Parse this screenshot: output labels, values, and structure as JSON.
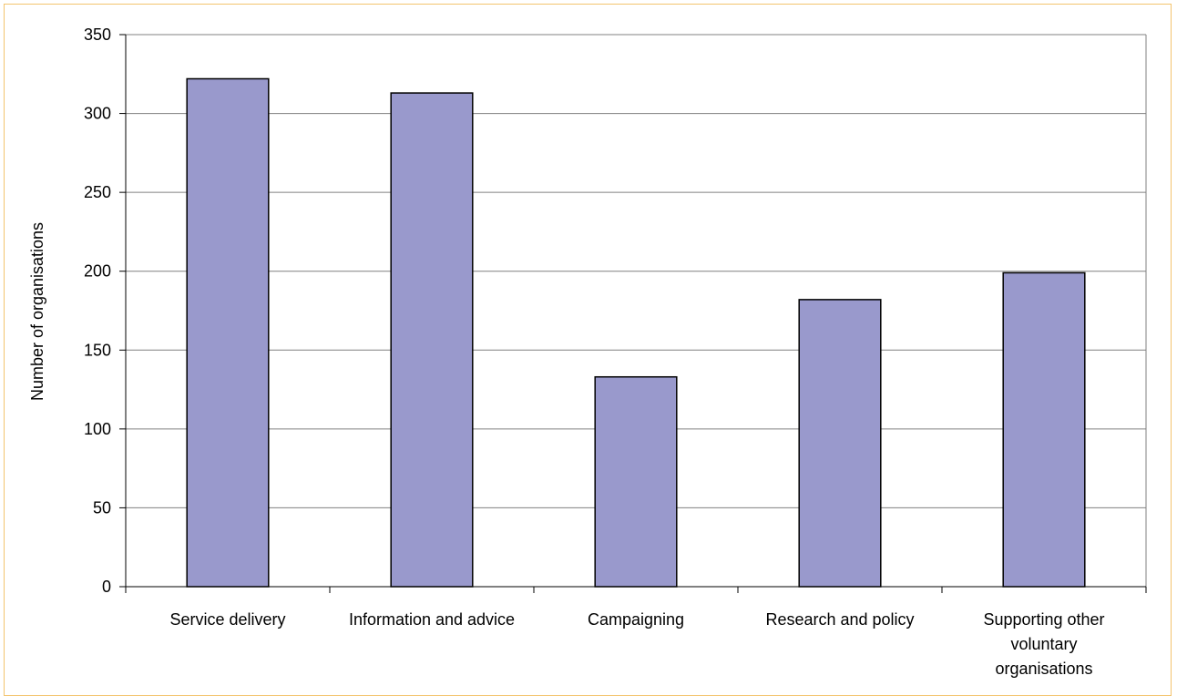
{
  "chart_data": {
    "type": "bar",
    "title": "",
    "xlabel": "",
    "ylabel": "Number of organisations",
    "categories": [
      "Service delivery",
      "Information and advice",
      "Campaigning",
      "Research and policy",
      "Supporting other voluntary organisations"
    ],
    "category_label_lines": [
      [
        "Service delivery"
      ],
      [
        "Information and advice"
      ],
      [
        "Campaigning"
      ],
      [
        "Research and policy"
      ],
      [
        "Supporting other",
        "voluntary",
        "organisations"
      ]
    ],
    "values": [
      322,
      313,
      133,
      182,
      199
    ],
    "ylim": [
      0,
      350
    ],
    "yticks": [
      0,
      50,
      100,
      150,
      200,
      250,
      300,
      350
    ],
    "grid": true,
    "legend": "none",
    "colors": {
      "bar_fill": "#9999cc",
      "bar_stroke": "#000000",
      "grid": "#808080",
      "axis": "#000000",
      "frame": "#f3c46e"
    }
  }
}
